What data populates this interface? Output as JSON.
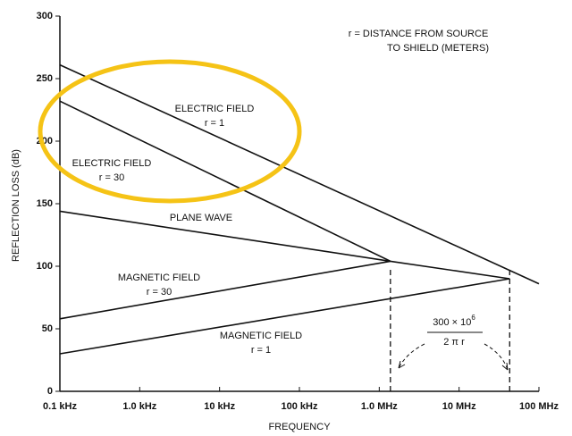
{
  "chart_data": {
    "type": "line",
    "xlabel": "FREQUENCY",
    "ylabel": "REFLECTION LOSS (dB)",
    "xscale": "log",
    "xlim": [
      100,
      100000000
    ],
    "ylim": [
      0,
      300
    ],
    "xticks": [
      {
        "value": 100,
        "label": "0.1 kHz"
      },
      {
        "value": 1000,
        "label": "1.0 kHz"
      },
      {
        "value": 10000,
        "label": "10 kHz"
      },
      {
        "value": 100000,
        "label": "100 kHz"
      },
      {
        "value": 1000000,
        "label": "1.0 MHz"
      },
      {
        "value": 10000000,
        "label": "10 MHz"
      },
      {
        "value": 100000000,
        "label": "100 MHz"
      }
    ],
    "yticks": [
      0,
      50,
      100,
      150,
      200,
      250,
      300
    ],
    "color": "#111111",
    "series": [
      {
        "name": "ELECTRIC FIELD",
        "label": "r = 1",
        "x": [
          100,
          100000000
        ],
        "values": [
          261,
          86
        ]
      },
      {
        "name": "ELECTRIC FIELD",
        "label": "r = 30",
        "x": [
          100,
          1380000
        ],
        "values": [
          232,
          104
        ]
      },
      {
        "name": "PLANE WAVE",
        "x": [
          100,
          1380000,
          43000000
        ],
        "values": [
          144,
          104,
          90
        ]
      },
      {
        "name": "MAGNETIC FIELD",
        "label": "r = 30",
        "x": [
          100,
          1380000
        ],
        "values": [
          58,
          104
        ]
      },
      {
        "name": "MAGNETIC FIELD",
        "label": "r = 1",
        "x": [
          100,
          43000000
        ],
        "values": [
          30,
          90
        ]
      }
    ],
    "vlines": [
      1380000,
      43000000
    ],
    "annotations": [
      "r = DISTANCE FROM SOURCE",
      "TO SHIELD (METERS)"
    ],
    "formula": {
      "numerator": "300 × 10",
      "exponent": "6",
      "denominator": "2 π r"
    }
  }
}
